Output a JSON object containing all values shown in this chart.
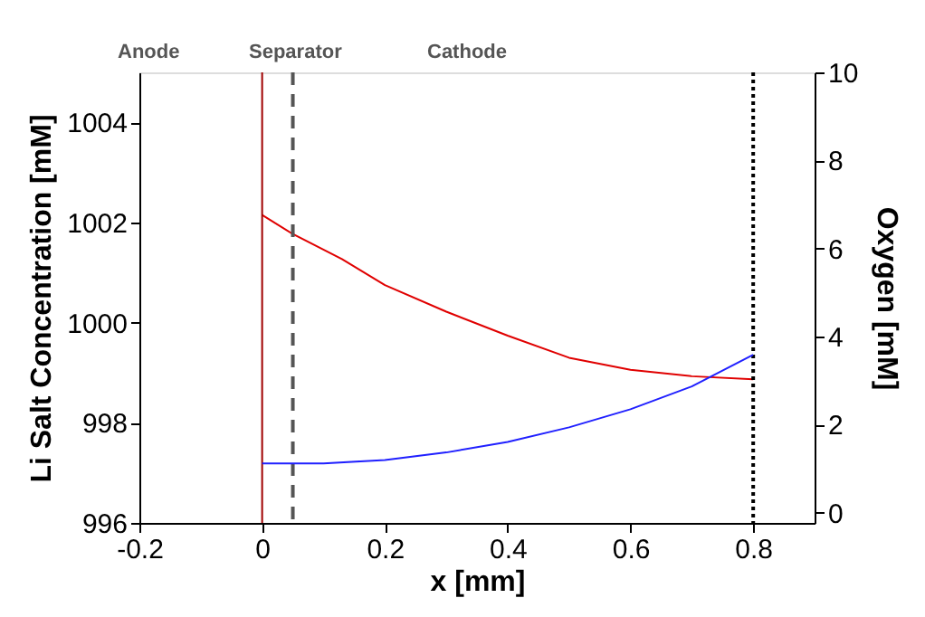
{
  "chart_data": {
    "type": "line",
    "xlabel": "x [mm]",
    "ylabel": "Li Salt Concentration [mM]",
    "y2label": "Oxygen [mM]",
    "xlim": [
      -0.2,
      0.9
    ],
    "xticks": [
      -0.2,
      0,
      0.2,
      0.4,
      0.6,
      0.8
    ],
    "ylim": [
      996,
      1005
    ],
    "yticks": [
      996,
      998,
      1000,
      1002,
      1004
    ],
    "y2lim": [
      -0.23,
      10
    ],
    "y2ticks": [
      0,
      2,
      4,
      6,
      8,
      10
    ],
    "grid": false,
    "marker": "none",
    "line_style": "solid",
    "series": [
      {
        "color": "#e00000",
        "x": [
          0,
          0.05,
          0.13,
          0.2,
          0.3,
          0.4,
          0.5,
          0.6,
          0.7,
          0.8
        ],
        "values": [
          1002.15,
          1001.77,
          1001.27,
          1000.75,
          1000.22,
          999.74,
          999.3,
          999.06,
          998.93,
          998.87
        ]
      },
      {
        "color": "#2020ff",
        "axis": "y2",
        "x": [
          0,
          0.1,
          0.2,
          0.3,
          0.4,
          0.5,
          0.6,
          0.7,
          0.8
        ],
        "values": [
          1.12,
          1.12,
          1.2,
          1.37,
          1.61,
          1.94,
          2.35,
          2.87,
          3.59
        ]
      }
    ],
    "ref_lines": [
      {
        "axis": "x",
        "value": 0,
        "color": "#a00000",
        "line_style": "solid"
      },
      {
        "axis": "x",
        "value": 0.05,
        "color": "#555555",
        "line_style": "dashed"
      },
      {
        "axis": "x",
        "value": 0.8,
        "color": "#000000",
        "line_style": "dotted"
      }
    ],
    "annotations": [
      "Anode",
      "Separator",
      "Cathode"
    ]
  }
}
